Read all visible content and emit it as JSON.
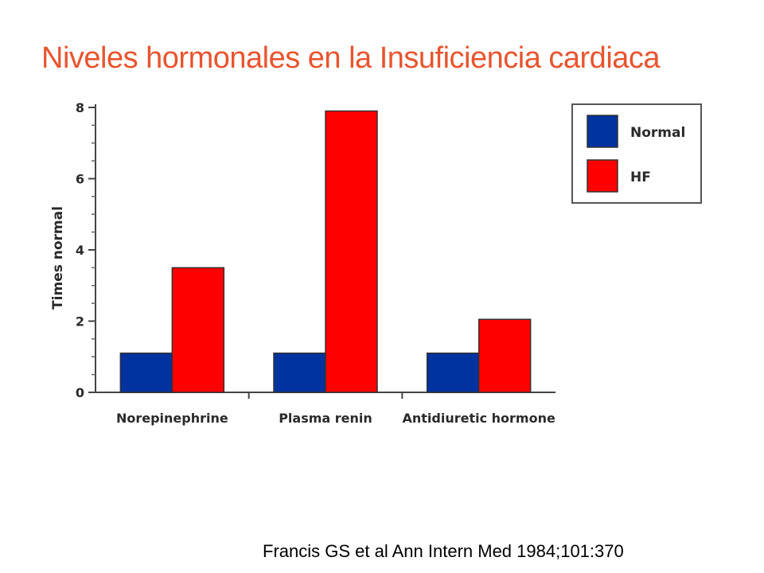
{
  "slide": {
    "title": "Niveles hormonales en la Insuficiencia cardiaca",
    "citation": "Francis GS et al Ann Intern Med 1984;101:370"
  },
  "chart_data": {
    "type": "bar",
    "title": "",
    "xlabel": "",
    "ylabel": "Times normal",
    "ylim": [
      0,
      8
    ],
    "yticks": [
      "0",
      "2",
      "4",
      "6",
      "8"
    ],
    "categories": [
      "Norepinephrine",
      "Plasma renin",
      "Antidiuretic hormone"
    ],
    "series": [
      {
        "name": "Normal",
        "color": "#0033a0",
        "values": [
          1.1,
          1.1,
          1.1
        ]
      },
      {
        "name": "HF",
        "color": "#ff0000",
        "values": [
          3.5,
          7.9,
          2.05
        ]
      }
    ],
    "legend_position": "top-right",
    "grid": false
  }
}
